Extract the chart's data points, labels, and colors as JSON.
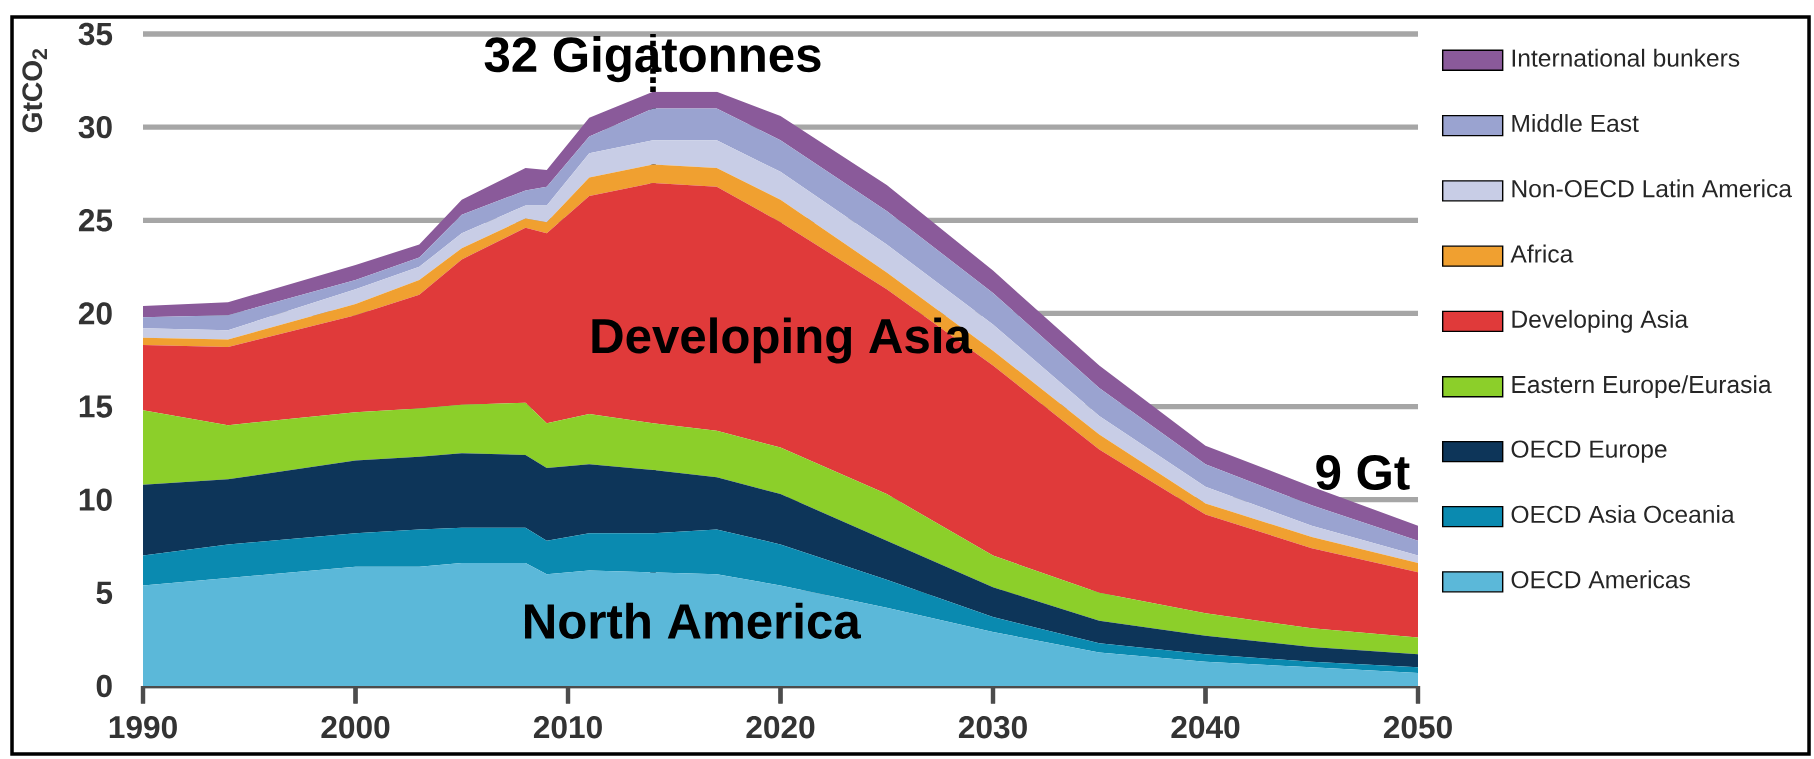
{
  "chart_data": {
    "type": "area",
    "stacked": true,
    "ylabel": "GtCO$_{2}$",
    "x": [
      1990,
      1994,
      2000,
      2003,
      2005,
      2008,
      2009,
      2011,
      2014,
      2017,
      2020,
      2025,
      2030,
      2035,
      2040,
      2045,
      2050
    ],
    "series": [
      {
        "name": "OECD Americas",
        "color": "#5bb8d9",
        "values": [
          5.4,
          5.8,
          6.4,
          6.4,
          6.6,
          6.6,
          6.0,
          6.2,
          6.1,
          6.0,
          5.4,
          4.2,
          2.9,
          1.8,
          1.3,
          1.0,
          0.7
        ]
      },
      {
        "name": "OECD Asia Oceania",
        "color": "#0a8ab0",
        "values": [
          1.6,
          1.8,
          1.8,
          2.0,
          1.9,
          1.9,
          1.8,
          2.0,
          2.1,
          2.4,
          2.2,
          1.5,
          0.8,
          0.5,
          0.4,
          0.3,
          0.3
        ]
      },
      {
        "name": "OECD Europe",
        "color": "#0d3559",
        "values": [
          3.8,
          3.5,
          3.9,
          3.9,
          4.0,
          3.9,
          3.9,
          3.7,
          3.4,
          2.8,
          2.7,
          2.1,
          1.6,
          1.2,
          1.0,
          0.8,
          0.7
        ]
      },
      {
        "name": "Eastern Europe/Eurasia",
        "color": "#8ccf2a",
        "values": [
          4.0,
          2.9,
          2.6,
          2.6,
          2.6,
          2.8,
          2.4,
          2.7,
          2.5,
          2.5,
          2.5,
          2.5,
          1.7,
          1.5,
          1.2,
          1.0,
          0.9
        ]
      },
      {
        "name": "Developing Asia",
        "color": "#e03a3a",
        "values": [
          3.5,
          4.2,
          5.2,
          6.1,
          7.8,
          9.4,
          10.2,
          11.7,
          12.9,
          13.1,
          12.1,
          11.0,
          10.2,
          7.7,
          5.3,
          4.3,
          3.5
        ]
      },
      {
        "name": "Africa",
        "color": "#f0a030",
        "values": [
          0.4,
          0.4,
          0.6,
          0.8,
          0.6,
          0.5,
          0.6,
          1.0,
          1.0,
          1.0,
          1.2,
          0.9,
          0.8,
          0.8,
          0.6,
          0.6,
          0.5
        ]
      },
      {
        "name": "Non-OECD Latin America",
        "color": "#c8cde6",
        "values": [
          0.5,
          0.5,
          0.8,
          0.7,
          0.8,
          0.7,
          0.9,
          1.3,
          1.3,
          1.5,
          1.5,
          1.5,
          1.4,
          1.0,
          0.9,
          0.6,
          0.4
        ]
      },
      {
        "name": "Middle East",
        "color": "#9aa3d0",
        "values": [
          0.6,
          0.8,
          0.5,
          0.5,
          1.0,
          0.8,
          1.0,
          0.9,
          1.7,
          1.7,
          1.7,
          1.8,
          1.7,
          1.5,
          1.2,
          1.1,
          0.8
        ]
      },
      {
        "name": "International bunkers",
        "color": "#8a5a9a",
        "values": [
          0.6,
          0.7,
          0.8,
          0.7,
          0.8,
          1.2,
          0.9,
          1.0,
          0.9,
          0.9,
          1.3,
          1.4,
          1.2,
          1.2,
          1.0,
          1.0,
          0.8
        ]
      }
    ],
    "xlim": [
      1990,
      2050
    ],
    "xticks": [
      1990,
      2000,
      2010,
      2020,
      2030,
      2040,
      2050
    ],
    "ylim": [
      0,
      35
    ],
    "yticks": [
      0,
      5,
      10,
      15,
      20,
      25,
      30,
      35
    ],
    "grid": "y",
    "legend": "right",
    "ref_lines": [
      {
        "axis": "x",
        "value": 2014,
        "line_style": "dotted"
      }
    ],
    "annotations": [
      {
        "text": "32 Gigatonnes",
        "x": 2014,
        "y": 32
      },
      "Developing Asia",
      "North America",
      {
        "text": "9 Gt",
        "x": 2050,
        "y": 8.6
      }
    ]
  }
}
